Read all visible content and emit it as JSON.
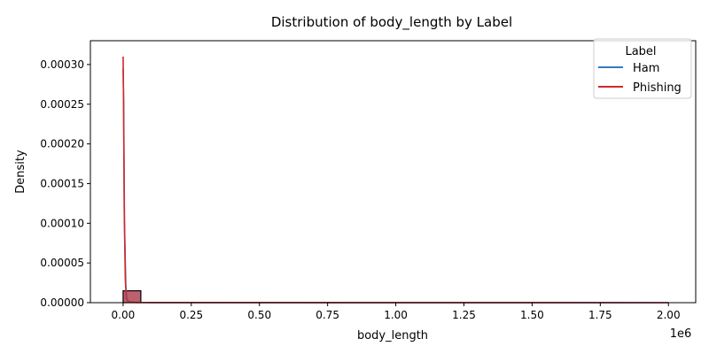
{
  "chart_data": {
    "type": "histogram+kde",
    "title": "Distribution of body_length by Label",
    "xlabel": "body_length",
    "ylabel": "Density",
    "x_offset_label": "1e6",
    "xlim": [
      -120000,
      2100000
    ],
    "ylim": [
      0,
      0.00033
    ],
    "x_ticks": [
      0,
      250000,
      500000,
      750000,
      1000000,
      1250000,
      1500000,
      1750000,
      2000000
    ],
    "x_tick_labels": [
      "0.00",
      "0.25",
      "0.50",
      "0.75",
      "1.00",
      "1.25",
      "1.50",
      "1.75",
      "2.00"
    ],
    "y_ticks": [
      0,
      5e-05,
      0.0001,
      0.00015,
      0.0002,
      0.00025,
      0.0003
    ],
    "y_tick_labels": [
      "0.00000",
      "0.00005",
      "0.00010",
      "0.00015",
      "0.00020",
      "0.00025",
      "0.00030"
    ],
    "histogram": {
      "bins": [
        {
          "x0": 0,
          "x1": 65000,
          "density": 1.5e-05
        }
      ],
      "fill": "#b5505f",
      "edge": "#000000"
    },
    "series": [
      {
        "name": "Ham",
        "color": "#3778bf",
        "x": [
          0,
          2000,
          5000,
          10000,
          15000,
          30000,
          100000,
          2000000
        ],
        "y": [
          0.000295,
          0.00025,
          0.0001,
          2e-05,
          3e-06,
          5e-07,
          1e-07,
          0.0
        ]
      },
      {
        "name": "Phishing",
        "color": "#d62728",
        "x": [
          0,
          1500,
          4000,
          8000,
          12000,
          20000,
          50000,
          2000000
        ],
        "y": [
          0.00031,
          0.00026,
          0.00012,
          3e-05,
          5e-06,
          1e-06,
          2e-07,
          0.0
        ]
      }
    ],
    "legend": {
      "title": "Label",
      "position": "top-right",
      "entries": [
        "Ham",
        "Phishing"
      ]
    },
    "grid": false
  }
}
